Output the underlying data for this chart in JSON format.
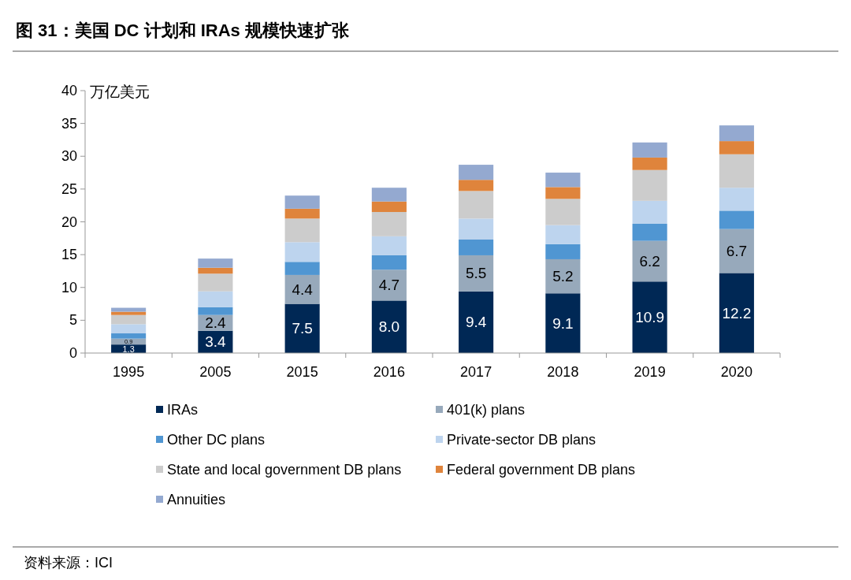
{
  "chart_data": {
    "type": "bar",
    "title": "图 31：美国 DC 计划和 IRAs 规模快速扩张",
    "ylabel": "万亿美元",
    "annotations": [
      "资料来源：ICI"
    ],
    "categories": [
      "1995",
      "2005",
      "2015",
      "2016",
      "2017",
      "2018",
      "2019",
      "2020"
    ],
    "stacked": true,
    "ylim": [
      0,
      40
    ],
    "yticks": [
      0,
      5,
      10,
      15,
      20,
      25,
      30,
      35,
      40
    ],
    "grid": false,
    "legend": "bottom",
    "series": [
      {
        "name": "IRAs",
        "color": "#002855",
        "values": [
          1.3,
          3.4,
          7.5,
          8.0,
          9.4,
          9.1,
          10.9,
          12.2
        ],
        "value_labels": [
          "1.3",
          "3.4",
          "7.5",
          "8.0",
          "9.4",
          "9.1",
          "10.9",
          "12.2"
        ]
      },
      {
        "name": "401(k) plans",
        "color": "#97a9bb",
        "values": [
          0.9,
          2.4,
          4.4,
          4.7,
          5.5,
          5.2,
          6.2,
          6.7
        ],
        "value_labels": [
          "0.9",
          "2.4",
          "4.4",
          "4.7",
          "5.5",
          "5.2",
          "6.2",
          "6.7"
        ]
      },
      {
        "name": "Other DC plans",
        "color": "#5096d2",
        "values": [
          0.8,
          1.2,
          2.0,
          2.2,
          2.4,
          2.3,
          2.6,
          2.8
        ]
      },
      {
        "name": "Private-sector DB plans",
        "color": "#bdd4ee",
        "values": [
          1.4,
          2.4,
          3.0,
          2.9,
          3.2,
          2.9,
          3.5,
          3.5
        ]
      },
      {
        "name": "State and local government DB plans",
        "color": "#cccccc",
        "values": [
          1.4,
          2.7,
          3.6,
          3.7,
          4.2,
          4.0,
          4.7,
          5.1
        ]
      },
      {
        "name": "Federal government DB plans",
        "color": "#df843c",
        "values": [
          0.5,
          0.9,
          1.5,
          1.6,
          1.7,
          1.8,
          1.9,
          2.0
        ]
      },
      {
        "name": "Annuities",
        "color": "#94a9d0",
        "values": [
          0.6,
          1.4,
          2.0,
          2.1,
          2.3,
          2.2,
          2.3,
          2.4
        ]
      }
    ]
  }
}
